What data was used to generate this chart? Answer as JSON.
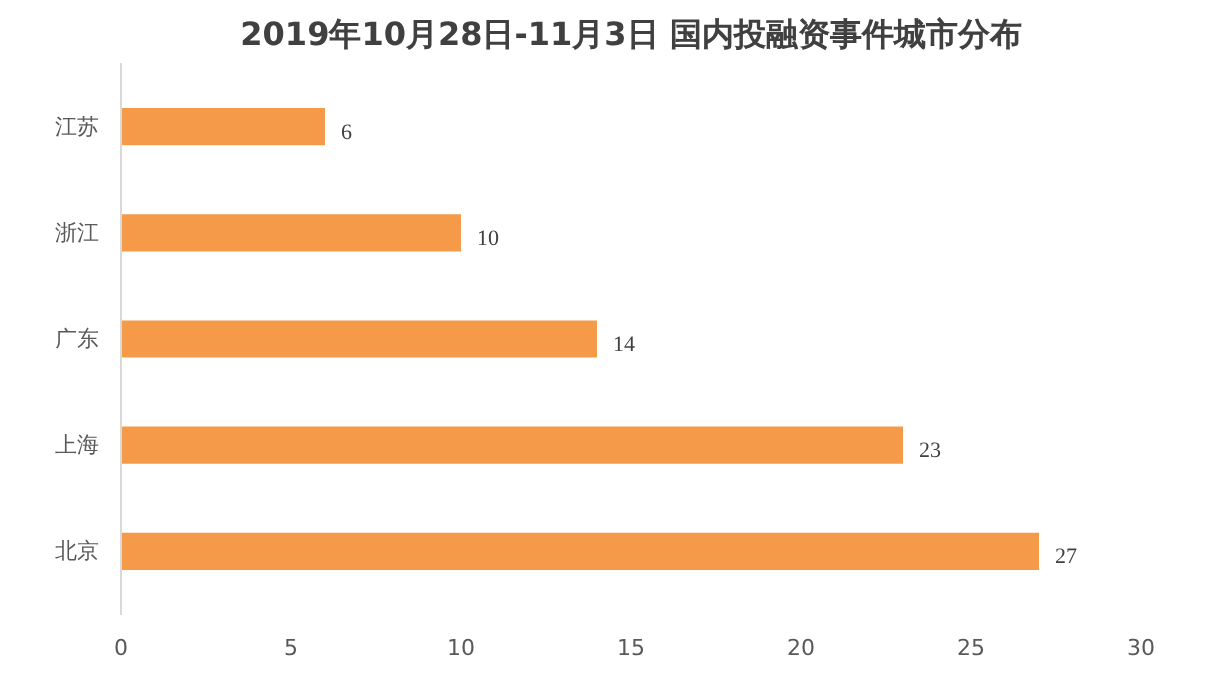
{
  "chart_data": {
    "type": "bar",
    "orientation": "horizontal",
    "title": "2019年10月28日-11月3日 国内投融资事件城市分布",
    "categories": [
      "江苏",
      "浙江",
      "广东",
      "上海",
      "北京"
    ],
    "values": [
      6,
      10,
      14,
      23,
      27
    ],
    "color": "#f59a48",
    "xlim": [
      0,
      30
    ],
    "xticks": [
      0,
      5,
      10,
      15,
      20,
      25,
      30
    ],
    "grid": false,
    "data_labels": true
  }
}
